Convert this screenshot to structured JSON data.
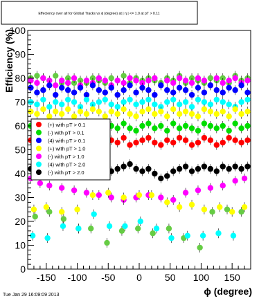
{
  "timestamp": "Tue Jan 29 16:09:09 2013",
  "chart_data": {
    "type": "scatter",
    "title": "Effeciency over all for Global Tracks vs ϕ (degree) at | η | <= 1.0 at pT > 0.11",
    "xlabel": "ϕ (degree)",
    "ylabel": "Efficiency (%)",
    "xlim": [
      -180,
      180
    ],
    "ylim": [
      0,
      100
    ],
    "x_ticks": [
      -150,
      -100,
      -50,
      0,
      50,
      100,
      150
    ],
    "y_ticks": [
      0,
      10,
      20,
      30,
      40,
      50,
      60,
      70,
      80,
      90,
      100
    ],
    "grid": false,
    "legend_position": "left",
    "legend": [
      {
        "label": "(+) with pT > 0.1",
        "color": "#ff0000"
      },
      {
        "label": "(-) with pT > 0.1",
        "color": "#00dd00"
      },
      {
        "label": "(4) with pT > 0.1",
        "color": "#0000ff"
      },
      {
        "label": "(+) with pT > 1.0",
        "color": "#ffff00"
      },
      {
        "label": "(-) with pT > 1.0",
        "color": "#ff00ff"
      },
      {
        "label": "(4) with pT > 2.0",
        "color": "#00ffff"
      },
      {
        "label": "(-) with pT > 2.0",
        "color": "#000000"
      }
    ],
    "series": [
      {
        "color": "#66cc44",
        "x": [
          -175,
          -165,
          -155,
          -145,
          -135,
          -125,
          -115,
          -105,
          -95,
          -85,
          -75,
          -65,
          -55,
          -45,
          -35,
          -25,
          -15,
          -5,
          5,
          15,
          25,
          35,
          45,
          55,
          65,
          75,
          85,
          95,
          105,
          115,
          125,
          135,
          145,
          155,
          165,
          175
        ],
        "y": [
          80,
          81,
          80,
          79,
          81,
          78,
          80,
          78,
          79,
          78,
          80,
          79,
          78,
          80,
          79,
          81,
          78,
          80,
          79,
          80,
          79,
          78,
          80,
          79,
          81,
          78,
          80,
          79,
          78,
          80,
          79,
          80,
          78,
          81,
          79,
          80
        ]
      },
      {
        "color": "#ff00ff",
        "x": [
          -175,
          -165,
          -155,
          -145,
          -135,
          -125,
          -115,
          -105,
          -95,
          -85,
          -75,
          -65,
          -55,
          -45,
          -35,
          -25,
          -15,
          -5,
          5,
          15,
          25,
          35,
          45,
          55,
          65,
          75,
          85,
          95,
          105,
          115,
          125,
          135,
          145,
          155,
          165,
          175
        ],
        "y": [
          79,
          78,
          80,
          79,
          77,
          79,
          78,
          80,
          77,
          79,
          78,
          80,
          79,
          77,
          79,
          78,
          80,
          79,
          78,
          79,
          80,
          77,
          79,
          78,
          80,
          79,
          78,
          80,
          79,
          77,
          80,
          78,
          79,
          80,
          78,
          79
        ]
      },
      {
        "color": "#0000ff",
        "x": [
          -175,
          -165,
          -155,
          -145,
          -135,
          -125,
          -115,
          -105,
          -95,
          -85,
          -75,
          -65,
          -55,
          -45,
          -35,
          -25,
          -15,
          -5,
          5,
          15,
          25,
          35,
          45,
          55,
          65,
          75,
          85,
          95,
          105,
          115,
          125,
          135,
          145,
          155,
          165,
          175
        ],
        "y": [
          76,
          74,
          75,
          77,
          73,
          76,
          75,
          74,
          76,
          73,
          77,
          75,
          74,
          76,
          73,
          75,
          77,
          74,
          76,
          75,
          73,
          77,
          75,
          74,
          76,
          75,
          73,
          76,
          74,
          77,
          75,
          74,
          76,
          75,
          77,
          74
        ]
      },
      {
        "color": "#00ffff",
        "x": [
          -175,
          -165,
          -155,
          -145,
          -135,
          -125,
          -115,
          -105,
          -95,
          -85,
          -75,
          -65,
          -55,
          -45,
          -35,
          -25,
          -15,
          -5,
          5,
          15,
          25,
          35,
          45,
          55,
          65,
          75,
          85,
          95,
          105,
          115,
          125,
          135,
          145,
          155,
          165,
          175
        ],
        "y": [
          70,
          69,
          71,
          68,
          70,
          69,
          71,
          70,
          68,
          71,
          69,
          70,
          71,
          69,
          68,
          70,
          71,
          69,
          70,
          71,
          69,
          68,
          70,
          71,
          69,
          70,
          68,
          71,
          70,
          69,
          71,
          70,
          69,
          68,
          70,
          71
        ]
      },
      {
        "color": "#ffff00",
        "x": [
          -175,
          -165,
          -155,
          -145,
          -135,
          -125,
          -115,
          -105,
          -95,
          -85,
          -75,
          -65,
          -55,
          -45,
          -35,
          -25,
          -15,
          -5,
          5,
          15,
          25,
          35,
          45,
          55,
          65,
          75,
          85,
          95,
          105,
          115,
          125,
          135,
          145,
          155,
          165,
          175
        ],
        "y": [
          66,
          65,
          67,
          64,
          66,
          65,
          67,
          64,
          66,
          65,
          67,
          66,
          64,
          66,
          65,
          67,
          65,
          64,
          66,
          67,
          65,
          66,
          64,
          67,
          65,
          66,
          65,
          64,
          67,
          66,
          65,
          66,
          64,
          67,
          65,
          66
        ]
      },
      {
        "color": "#00dd00",
        "x": [
          -175,
          -165,
          -155,
          -145,
          -135,
          -125,
          -115,
          -105,
          -95,
          -85,
          -75,
          -65,
          -55,
          -45,
          -35,
          -25,
          -15,
          -5,
          5,
          15,
          25,
          35,
          45,
          55,
          65,
          75,
          85,
          95,
          105,
          115,
          125,
          135,
          145,
          155,
          165,
          175
        ],
        "y": [
          60,
          59,
          61,
          58,
          60,
          59,
          61,
          58,
          60,
          59,
          61,
          60,
          58,
          60,
          59,
          61,
          59,
          58,
          60,
          61,
          59,
          60,
          58,
          61,
          59,
          60,
          59,
          58,
          61,
          60,
          59,
          60,
          58,
          61,
          59,
          60
        ]
      },
      {
        "color": "#ff0000",
        "x": [
          -175,
          -165,
          -155,
          -145,
          -135,
          -125,
          -115,
          -105,
          -95,
          -85,
          -75,
          -65,
          -55,
          -45,
          -35,
          -25,
          -15,
          -5,
          5,
          15,
          25,
          35,
          45,
          55,
          65,
          75,
          85,
          95,
          105,
          115,
          125,
          135,
          145,
          155,
          165,
          175
        ],
        "y": [
          54,
          53,
          55,
          52,
          54,
          53,
          55,
          53,
          52,
          54,
          55,
          53,
          52,
          54,
          53,
          55,
          52,
          53,
          54,
          55,
          53,
          52,
          54,
          53,
          55,
          54,
          52,
          53,
          55,
          54,
          52,
          53,
          55,
          54,
          53,
          54
        ]
      },
      {
        "color": "#000000",
        "x": [
          -175,
          -165,
          -155,
          -145,
          -135,
          -125,
          -115,
          -105,
          -95,
          -85,
          -75,
          -65,
          -55,
          -45,
          -35,
          -25,
          -15,
          -5,
          5,
          15,
          25,
          35,
          45,
          55,
          65,
          75,
          85,
          95,
          105,
          115,
          125,
          135,
          145,
          155,
          165,
          175
        ],
        "y": [
          42,
          43,
          41,
          43,
          42,
          44,
          43,
          42,
          41,
          43,
          44,
          42,
          43,
          41,
          42,
          43,
          44,
          42,
          41,
          42,
          40,
          38,
          39,
          41,
          42,
          43,
          41,
          42,
          43,
          42,
          41,
          43,
          42,
          43,
          42,
          43
        ]
      },
      {
        "color": "#ff00ff",
        "x": [
          -175,
          -160,
          -145,
          -125,
          -105,
          -85,
          -65,
          -45,
          -25,
          -5,
          15,
          35,
          55,
          75,
          95,
          115,
          135,
          155,
          170
        ],
        "y": [
          38,
          36,
          35,
          34,
          33,
          32,
          31,
          30,
          29,
          30,
          31,
          30,
          29,
          32,
          33,
          34,
          35,
          37,
          38
        ]
      },
      {
        "color": "#ffff00",
        "x": [
          -170,
          -150,
          -125,
          -100,
          -75,
          -50,
          -25,
          0,
          20,
          45,
          65,
          85,
          105,
          130,
          150,
          170
        ],
        "y": [
          25,
          26,
          24,
          25,
          31,
          32,
          30,
          31,
          31,
          28,
          26,
          27,
          25,
          26,
          24,
          26
        ]
      },
      {
        "color": "#66cc44",
        "x": [
          -168,
          -145,
          -122,
          -98,
          -78,
          -52,
          -28,
          -2,
          22,
          48,
          72,
          98,
          118,
          142,
          165
        ],
        "y": [
          22,
          24,
          21,
          17,
          17,
          11,
          16,
          17,
          15,
          17,
          13,
          9,
          24,
          25,
          24
        ]
      },
      {
        "color": "#00ffff",
        "x": [
          -172,
          -148,
          -123,
          -98,
          -73,
          -48,
          -23,
          2,
          28,
          52,
          78,
          103,
          128,
          152
        ],
        "y": [
          14,
          13,
          18,
          17,
          23,
          18,
          18,
          20,
          17,
          13,
          14,
          14,
          15,
          14
        ]
      }
    ]
  }
}
